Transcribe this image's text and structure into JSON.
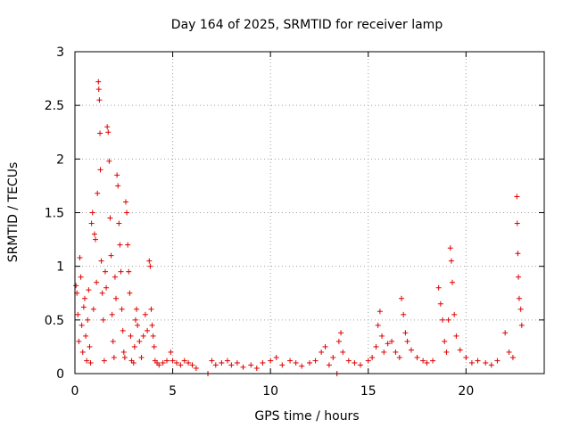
{
  "chart_data": {
    "type": "scatter",
    "title": "Day 164 of 2025, SRMTID for receiver lamp",
    "xlabel": "GPS time / hours",
    "ylabel": "SRMTID / TECUs",
    "xlim": [
      0,
      24
    ],
    "ylim": [
      0,
      3
    ],
    "xticks": [
      0,
      5,
      10,
      15,
      20
    ],
    "xtick_labels": [
      "0",
      "5",
      "10",
      "15",
      "20"
    ],
    "yticks": [
      0,
      0.5,
      1,
      1.5,
      2,
      2.5,
      3
    ],
    "ytick_labels": [
      "0",
      "0.5",
      "1",
      "1.5",
      "2",
      "2.5",
      "3"
    ],
    "grid": true,
    "marker": "+",
    "marker_color": "#dd0000",
    "series": [
      {
        "name": "SRMTID",
        "points": [
          [
            0.05,
            0.82
          ],
          [
            0.1,
            0.75
          ],
          [
            0.15,
            0.55
          ],
          [
            0.2,
            0.3
          ],
          [
            0.25,
            1.08
          ],
          [
            0.3,
            0.9
          ],
          [
            0.35,
            0.45
          ],
          [
            0.4,
            0.2
          ],
          [
            0.45,
            0.62
          ],
          [
            0.5,
            0.7
          ],
          [
            0.55,
            0.35
          ],
          [
            0.6,
            0.12
          ],
          [
            0.65,
            0.5
          ],
          [
            0.7,
            0.78
          ],
          [
            0.75,
            0.25
          ],
          [
            0.8,
            0.1
          ],
          [
            0.85,
            1.4
          ],
          [
            0.9,
            1.5
          ],
          [
            0.95,
            0.6
          ],
          [
            1.0,
            1.3
          ],
          [
            1.05,
            1.25
          ],
          [
            1.1,
            0.85
          ],
          [
            1.15,
            1.68
          ],
          [
            1.2,
            2.72
          ],
          [
            1.22,
            2.65
          ],
          [
            1.25,
            2.55
          ],
          [
            1.28,
            2.24
          ],
          [
            1.3,
            1.9
          ],
          [
            1.35,
            1.05
          ],
          [
            1.4,
            0.75
          ],
          [
            1.45,
            0.5
          ],
          [
            1.5,
            0.12
          ],
          [
            1.55,
            0.95
          ],
          [
            1.6,
            0.8
          ],
          [
            1.65,
            2.3
          ],
          [
            1.7,
            2.25
          ],
          [
            1.75,
            1.98
          ],
          [
            1.8,
            1.45
          ],
          [
            1.85,
            1.1
          ],
          [
            1.9,
            0.55
          ],
          [
            1.95,
            0.3
          ],
          [
            2.0,
            0.15
          ],
          [
            2.05,
            0.9
          ],
          [
            2.1,
            0.7
          ],
          [
            2.15,
            1.85
          ],
          [
            2.2,
            1.75
          ],
          [
            2.25,
            1.4
          ],
          [
            2.3,
            1.2
          ],
          [
            2.35,
            0.95
          ],
          [
            2.4,
            0.6
          ],
          [
            2.45,
            0.4
          ],
          [
            2.5,
            0.2
          ],
          [
            2.55,
            0.15
          ],
          [
            2.6,
            1.6
          ],
          [
            2.65,
            1.5
          ],
          [
            2.7,
            1.2
          ],
          [
            2.75,
            0.95
          ],
          [
            2.8,
            0.75
          ],
          [
            2.85,
            0.35
          ],
          [
            2.9,
            0.12
          ],
          [
            3.0,
            0.1
          ],
          [
            3.05,
            0.25
          ],
          [
            3.1,
            0.5
          ],
          [
            3.15,
            0.6
          ],
          [
            3.2,
            0.45
          ],
          [
            3.3,
            0.3
          ],
          [
            3.4,
            0.15
          ],
          [
            3.5,
            0.35
          ],
          [
            3.6,
            0.55
          ],
          [
            3.7,
            0.4
          ],
          [
            3.8,
            1.05
          ],
          [
            3.85,
            1.0
          ],
          [
            3.9,
            0.6
          ],
          [
            3.95,
            0.45
          ],
          [
            4.0,
            0.35
          ],
          [
            4.05,
            0.25
          ],
          [
            4.1,
            0.12
          ],
          [
            4.2,
            0.1
          ],
          [
            4.3,
            0.08
          ],
          [
            4.5,
            0.1
          ],
          [
            4.7,
            0.12
          ],
          [
            4.9,
            0.2
          ],
          [
            5.0,
            0.12
          ],
          [
            5.2,
            0.1
          ],
          [
            5.4,
            0.08
          ],
          [
            5.6,
            0.12
          ],
          [
            5.8,
            0.1
          ],
          [
            6.0,
            0.08
          ],
          [
            6.2,
            0.05
          ],
          [
            6.8,
            0.0
          ],
          [
            7.0,
            0.12
          ],
          [
            7.2,
            0.08
          ],
          [
            7.5,
            0.1
          ],
          [
            7.8,
            0.12
          ],
          [
            8.0,
            0.08
          ],
          [
            8.3,
            0.1
          ],
          [
            8.6,
            0.06
          ],
          [
            9.0,
            0.08
          ],
          [
            9.3,
            0.05
          ],
          [
            9.6,
            0.1
          ],
          [
            10.0,
            0.12
          ],
          [
            10.3,
            0.15
          ],
          [
            10.6,
            0.08
          ],
          [
            11.0,
            0.12
          ],
          [
            11.3,
            0.1
          ],
          [
            11.6,
            0.07
          ],
          [
            12.0,
            0.1
          ],
          [
            12.3,
            0.12
          ],
          [
            12.6,
            0.2
          ],
          [
            12.8,
            0.25
          ],
          [
            13.0,
            0.08
          ],
          [
            13.2,
            0.15
          ],
          [
            13.4,
            0.0
          ],
          [
            13.5,
            0.3
          ],
          [
            13.6,
            0.38
          ],
          [
            13.7,
            0.2
          ],
          [
            14.0,
            0.12
          ],
          [
            14.3,
            0.1
          ],
          [
            14.6,
            0.08
          ],
          [
            15.0,
            0.12
          ],
          [
            15.2,
            0.15
          ],
          [
            15.4,
            0.25
          ],
          [
            15.5,
            0.45
          ],
          [
            15.6,
            0.58
          ],
          [
            15.7,
            0.35
          ],
          [
            15.8,
            0.2
          ],
          [
            16.0,
            0.28
          ],
          [
            16.2,
            0.3
          ],
          [
            16.4,
            0.2
          ],
          [
            16.6,
            0.15
          ],
          [
            16.7,
            0.7
          ],
          [
            16.8,
            0.55
          ],
          [
            16.9,
            0.38
          ],
          [
            17.0,
            0.3
          ],
          [
            17.2,
            0.22
          ],
          [
            17.5,
            0.15
          ],
          [
            17.8,
            0.12
          ],
          [
            18.0,
            0.1
          ],
          [
            18.3,
            0.12
          ],
          [
            18.6,
            0.8
          ],
          [
            18.7,
            0.65
          ],
          [
            18.8,
            0.5
          ],
          [
            18.9,
            0.3
          ],
          [
            19.0,
            0.2
          ],
          [
            19.1,
            0.5
          ],
          [
            19.2,
            1.17
          ],
          [
            19.25,
            1.05
          ],
          [
            19.3,
            0.85
          ],
          [
            19.4,
            0.55
          ],
          [
            19.5,
            0.35
          ],
          [
            19.7,
            0.22
          ],
          [
            20.0,
            0.15
          ],
          [
            20.3,
            0.1
          ],
          [
            20.6,
            0.12
          ],
          [
            21.0,
            0.1
          ],
          [
            21.3,
            0.08
          ],
          [
            21.6,
            0.12
          ],
          [
            22.0,
            0.38
          ],
          [
            22.2,
            0.2
          ],
          [
            22.4,
            0.15
          ],
          [
            22.6,
            1.65
          ],
          [
            22.62,
            1.4
          ],
          [
            22.65,
            1.12
          ],
          [
            22.68,
            0.9
          ],
          [
            22.72,
            0.7
          ],
          [
            22.8,
            0.6
          ],
          [
            22.85,
            0.45
          ]
        ]
      }
    ]
  }
}
